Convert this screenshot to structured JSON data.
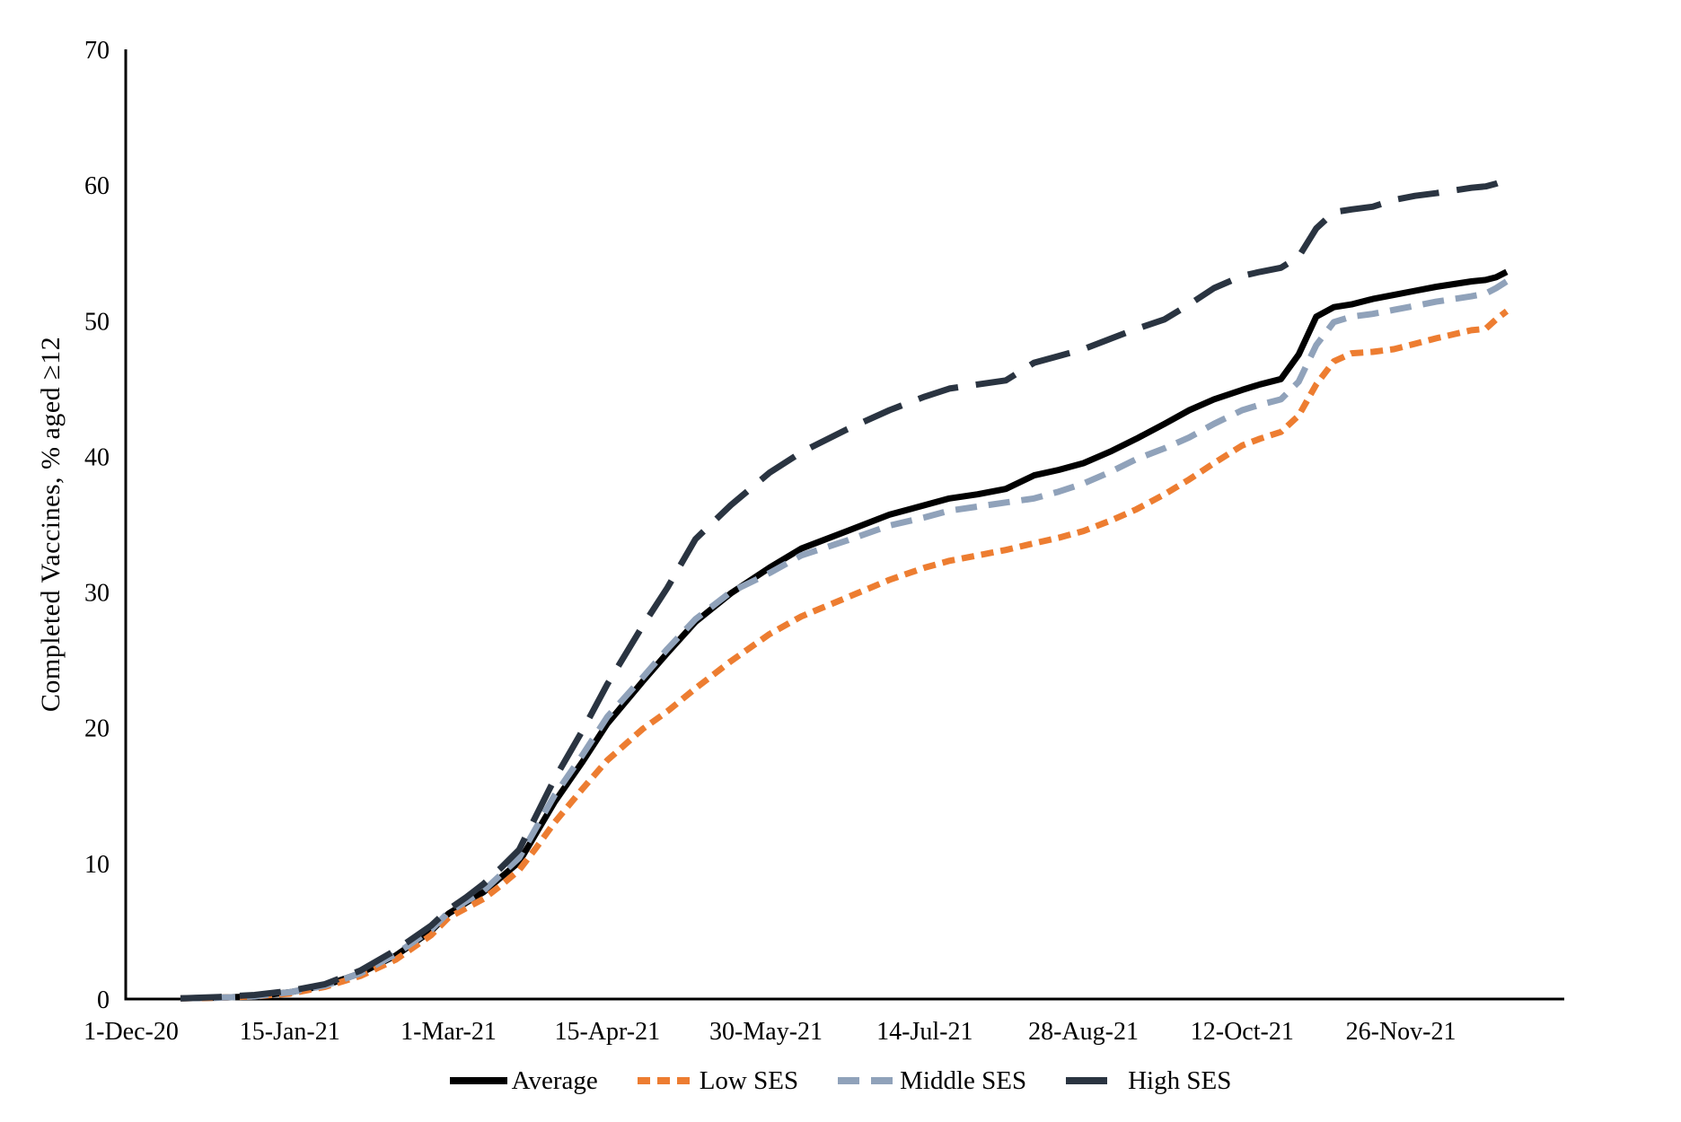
{
  "chart_data": {
    "type": "line",
    "title": "",
    "xlabel": "",
    "ylabel": "Completed Vaccines, % aged ≥12",
    "ylim": [
      0,
      70
    ],
    "grid": false,
    "legend_position": "bottom",
    "axis_color": "#000000",
    "background": "#ffffff",
    "y_ticks": [
      0,
      10,
      20,
      30,
      40,
      50,
      60,
      70
    ],
    "x_tick_labels": [
      "1-Dec-20",
      "15-Jan-21",
      "1-Mar-21",
      "15-Apr-21",
      "30-May-21",
      "14-Jul-21",
      "28-Aug-21",
      "12-Oct-21",
      "26-Nov-21"
    ],
    "x_tick_days": [
      0,
      45,
      90,
      135,
      180,
      225,
      270,
      315,
      360
    ],
    "x_unit": "days since 1-Dec-20",
    "x": [
      14,
      25,
      35,
      45,
      55,
      65,
      75,
      85,
      90,
      95,
      100,
      105,
      110,
      115,
      120,
      128,
      135,
      145,
      152,
      160,
      170,
      181,
      190,
      203,
      215,
      225,
      232,
      240,
      248,
      256,
      263,
      270,
      278,
      285,
      293,
      300,
      307,
      315,
      320,
      326,
      331,
      336,
      341,
      346,
      352,
      358,
      364,
      370,
      375,
      380,
      384,
      387,
      390
    ],
    "series": [
      {
        "name": "Average",
        "color": "#000000",
        "dash": null,
        "width": 7,
        "values": [
          0.05,
          0.1,
          0.2,
          0.5,
          1.0,
          1.9,
          3.2,
          5.0,
          6.3,
          7.1,
          7.9,
          9.0,
          10.1,
          12.3,
          14.5,
          17.5,
          20.3,
          23.4,
          25.5,
          27.8,
          29.9,
          31.8,
          33.2,
          34.5,
          35.7,
          36.4,
          36.9,
          37.2,
          37.6,
          38.6,
          39.0,
          39.5,
          40.4,
          41.3,
          42.4,
          43.4,
          44.2,
          44.9,
          45.3,
          45.7,
          47.5,
          50.3,
          51.0,
          51.2,
          51.6,
          51.9,
          52.2,
          52.5,
          52.7,
          52.9,
          53.0,
          53.2,
          53.6
        ]
      },
      {
        "name": "Low SES",
        "color": "#ED7D31",
        "dash": [
          14,
          8
        ],
        "width": 7,
        "values": [
          0.05,
          0.1,
          0.2,
          0.4,
          0.9,
          1.7,
          2.9,
          4.7,
          6.0,
          6.7,
          7.4,
          8.4,
          9.5,
          11.2,
          13.0,
          15.5,
          17.6,
          19.9,
          21.2,
          22.9,
          24.9,
          26.9,
          28.2,
          29.6,
          30.9,
          31.8,
          32.3,
          32.7,
          33.1,
          33.6,
          34.0,
          34.5,
          35.3,
          36.1,
          37.2,
          38.3,
          39.5,
          40.8,
          41.3,
          41.8,
          43.0,
          45.3,
          47.0,
          47.6,
          47.7,
          47.9,
          48.3,
          48.7,
          49.0,
          49.3,
          49.4,
          50.1,
          50.7
        ]
      },
      {
        "name": "Middle SES",
        "color": "#90A2BA",
        "dash": [
          24,
          13
        ],
        "width": 7,
        "values": [
          0.05,
          0.1,
          0.2,
          0.5,
          1.0,
          1.9,
          3.3,
          5.1,
          6.4,
          7.2,
          8.0,
          9.2,
          10.4,
          12.7,
          15.0,
          18.0,
          20.8,
          23.7,
          25.8,
          28.0,
          30.0,
          31.4,
          32.7,
          33.8,
          34.9,
          35.5,
          36.0,
          36.3,
          36.6,
          36.9,
          37.4,
          38.0,
          38.9,
          39.8,
          40.6,
          41.4,
          42.4,
          43.4,
          43.8,
          44.2,
          45.5,
          48.2,
          49.9,
          50.3,
          50.5,
          50.8,
          51.1,
          51.4,
          51.6,
          51.8,
          52.0,
          52.4,
          52.9
        ]
      },
      {
        "name": "High SES",
        "color": "#2A3441",
        "dash": [
          46,
          20
        ],
        "width": 7,
        "values": [
          0.05,
          0.15,
          0.3,
          0.6,
          1.1,
          2.1,
          3.6,
          5.4,
          6.6,
          7.5,
          8.5,
          9.7,
          11.0,
          13.6,
          16.2,
          19.8,
          23.2,
          27.5,
          30.3,
          33.9,
          36.4,
          38.8,
          40.3,
          42.0,
          43.4,
          44.4,
          45.0,
          45.3,
          45.6,
          46.9,
          47.4,
          47.9,
          48.7,
          49.4,
          50.1,
          51.2,
          52.4,
          53.3,
          53.6,
          53.9,
          54.7,
          56.8,
          58.0,
          58.2,
          58.4,
          58.9,
          59.2,
          59.4,
          59.6,
          59.8,
          59.9,
          60.1,
          60.4
        ]
      }
    ]
  }
}
